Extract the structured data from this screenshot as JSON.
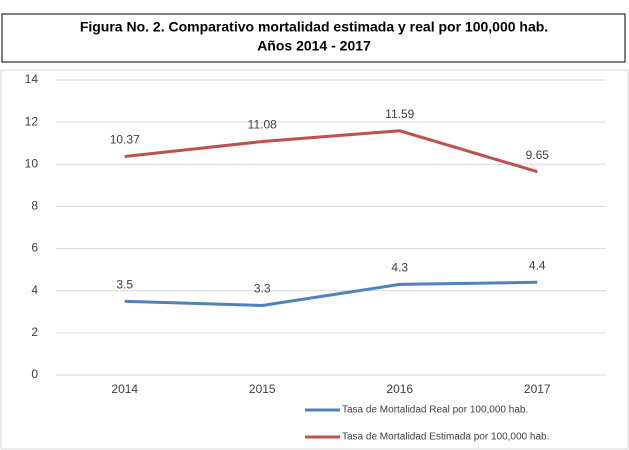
{
  "chart_data": {
    "type": "line",
    "title": [
      "Figura No. 2. Comparativo mortalidad estimada y real por 100,000 hab.",
      "Años 2014 - 2017"
    ],
    "categories": [
      "2014",
      "2015",
      "2016",
      "2017"
    ],
    "series": [
      {
        "name": "Tasa de Mortalidad Real por 100,000 hab.",
        "color": "#4f81bd",
        "values": [
          3.5,
          3.3,
          4.3,
          4.4
        ]
      },
      {
        "name": "Tasa de Mortalidad Estimada por 100,000 hab.",
        "color": "#c0504d",
        "values": [
          10.37,
          11.08,
          11.59,
          9.65
        ]
      }
    ],
    "ylim": [
      0,
      14
    ],
    "yticks": [
      0,
      2,
      4,
      6,
      8,
      10,
      12,
      14
    ],
    "grid": true,
    "legend": "bottom-right"
  }
}
